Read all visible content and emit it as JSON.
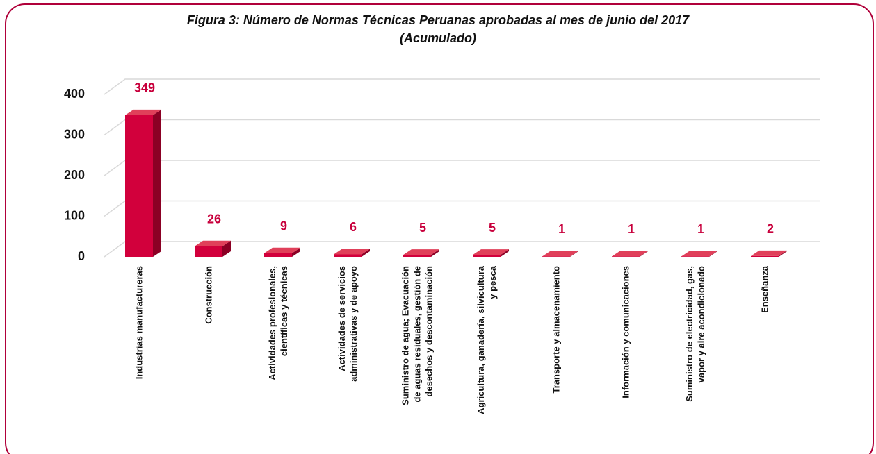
{
  "chart_data": {
    "type": "bar3d",
    "title": "Figura 3: Número de Normas Técnicas Peruanas aprobadas  al mes de junio del 2017\n(Acumulado)",
    "categories": [
      "Industrias manufactureras",
      "Construcción",
      "Actividades profesionales,\ncientíficas y técnicas",
      "Actividades de servicios\nadministrativas y de apoyo",
      "Suministro de agua; Evacuación\nde aguas residuales, gestión de\ndesechos y descontaminación",
      "Agricultura, ganadería, silvicultura\ny pesca",
      "Transporte y almacenamiento",
      "Información y comunicaciones",
      "Suministro de electricidad, gas,\nvapor y aire acondicionado",
      "Enseñanza"
    ],
    "values": [
      349,
      26,
      9,
      6,
      5,
      5,
      1,
      1,
      1,
      2
    ],
    "color": "#d2003c",
    "ylim": [
      0,
      400
    ],
    "yticks": [
      0,
      100,
      200,
      300,
      400
    ],
    "grid": true
  }
}
